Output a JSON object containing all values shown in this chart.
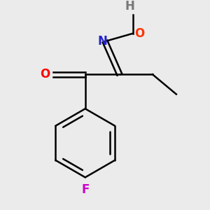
{
  "bg_color": "#ebebeb",
  "bond_color": "#000000",
  "atom_colors": {
    "O_ketone": "#ff0000",
    "N": "#2222cc",
    "O_oxime": "#ff3300",
    "H": "#777777",
    "F": "#cc00cc"
  },
  "figsize": [
    3.0,
    3.0
  ],
  "dpi": 100,
  "lw": 1.8
}
